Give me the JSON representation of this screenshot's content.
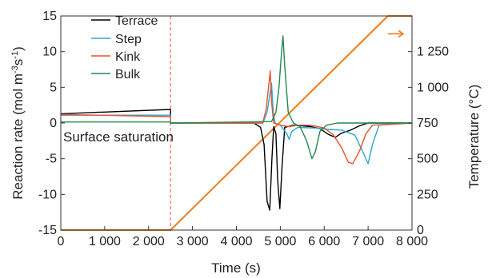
{
  "chart_data": {
    "type": "line",
    "xlabel": "Time (s)",
    "ylabel_left": "Reaction rate (mol m-3s-1)",
    "ylabel_left_parts": {
      "main": "Reaction rate (mol m",
      "sup1": "-3",
      "mid": "s",
      "sup2": "-1",
      "end": ")"
    },
    "ylabel_right": "Temperature (°C)",
    "xlim": [
      0,
      8000
    ],
    "ylim_left": [
      -15,
      15
    ],
    "ylim_right": [
      0,
      1500
    ],
    "x_ticks": [
      0,
      1000,
      2000,
      3000,
      4000,
      5000,
      6000,
      7000,
      8000
    ],
    "x_tick_labels": [
      "0",
      "1 000",
      "2 000",
      "3 000",
      "4 000",
      "5 000",
      "6 000",
      "7 000",
      "8 000"
    ],
    "y_left_ticks": [
      15,
      10,
      5,
      0,
      -5,
      -10,
      -15
    ],
    "y_left_tick_labels": [
      "15",
      "10",
      "5",
      "0",
      "-5",
      "-10",
      "-15"
    ],
    "y_right_ticks": [
      0,
      250,
      500,
      750,
      1000,
      1250
    ],
    "y_right_tick_labels": [
      "0",
      "250",
      "500",
      "750",
      "1 000",
      "1 250"
    ],
    "grid": false,
    "legend_position": "top-left",
    "annotation": {
      "text": "Surface saturation",
      "x": 0,
      "y": -1.2
    },
    "saturation_end_x": 2500,
    "series": [
      {
        "name": "Terrace",
        "color": "#000000",
        "axis": "left",
        "points": [
          [
            0,
            1.3
          ],
          [
            2500,
            1.9
          ],
          [
            2500,
            0
          ],
          [
            4400,
            0
          ],
          [
            4550,
            -0.6
          ],
          [
            4630,
            -3
          ],
          [
            4700,
            -11
          ],
          [
            4760,
            -12.2
          ],
          [
            4810,
            -5
          ],
          [
            4850,
            -0.5
          ],
          [
            4900,
            -1.5
          ],
          [
            4940,
            -8
          ],
          [
            4990,
            -12
          ],
          [
            5040,
            -6
          ],
          [
            5100,
            -0.6
          ],
          [
            5300,
            -0.3
          ],
          [
            5700,
            -0.5
          ],
          [
            5900,
            -0.8
          ],
          [
            6100,
            -1.6
          ],
          [
            6250,
            -2.0
          ],
          [
            6400,
            -1.4
          ],
          [
            6600,
            -1.0
          ],
          [
            6800,
            -0.4
          ],
          [
            7000,
            0
          ],
          [
            8000,
            0
          ]
        ]
      },
      {
        "name": "Step",
        "color": "#29a6d1",
        "axis": "left",
        "points": [
          [
            0,
            1.1
          ],
          [
            2500,
            1.1
          ],
          [
            2500,
            0
          ],
          [
            4600,
            0
          ],
          [
            4700,
            1.5
          ],
          [
            4760,
            4
          ],
          [
            4800,
            5.6
          ],
          [
            4840,
            1.5
          ],
          [
            4880,
            0
          ],
          [
            5000,
            -0.3
          ],
          [
            5150,
            -1.5
          ],
          [
            5200,
            -2.3
          ],
          [
            5260,
            -1.2
          ],
          [
            5400,
            -0.6
          ],
          [
            5800,
            -0.7
          ],
          [
            6100,
            -0.9
          ],
          [
            6400,
            -1.0
          ],
          [
            6700,
            -1.7
          ],
          [
            6900,
            -4.3
          ],
          [
            7000,
            -5.7
          ],
          [
            7100,
            -3
          ],
          [
            7250,
            -0.3
          ],
          [
            8000,
            0
          ]
        ]
      },
      {
        "name": "Kink",
        "color": "#e8542a",
        "axis": "left",
        "points": [
          [
            0,
            1.2
          ],
          [
            2500,
            0.9
          ],
          [
            2500,
            0
          ],
          [
            4600,
            0
          ],
          [
            4680,
            2
          ],
          [
            4740,
            5.5
          ],
          [
            4770,
            7.3
          ],
          [
            4800,
            3
          ],
          [
            4850,
            0
          ],
          [
            5000,
            -0.3
          ],
          [
            5200,
            -0.5
          ],
          [
            5400,
            -0.3
          ],
          [
            5700,
            -0.3
          ],
          [
            6000,
            -0.7
          ],
          [
            6200,
            -1.6
          ],
          [
            6400,
            -3.5
          ],
          [
            6550,
            -5.5
          ],
          [
            6650,
            -5.7
          ],
          [
            6800,
            -4
          ],
          [
            6950,
            -1.5
          ],
          [
            7100,
            -0.3
          ],
          [
            8000,
            0
          ]
        ]
      },
      {
        "name": "Bulk",
        "color": "#1d8a4e",
        "axis": "left",
        "points": [
          [
            0,
            0.15
          ],
          [
            2500,
            0.15
          ],
          [
            2500,
            0
          ],
          [
            4800,
            0.2
          ],
          [
            4900,
            1.5
          ],
          [
            4970,
            5
          ],
          [
            5030,
            10
          ],
          [
            5060,
            12.2
          ],
          [
            5100,
            8
          ],
          [
            5180,
            1.5
          ],
          [
            5300,
            0
          ],
          [
            5450,
            -0.5
          ],
          [
            5600,
            -2.5
          ],
          [
            5720,
            -5
          ],
          [
            5800,
            -4
          ],
          [
            5900,
            -1.2
          ],
          [
            6050,
            -0.3
          ],
          [
            6300,
            0
          ],
          [
            8000,
            0
          ]
        ]
      },
      {
        "name": "Temperature",
        "color": "#ef7d1d",
        "axis": "right",
        "points": [
          [
            0,
            0
          ],
          [
            2500,
            0
          ],
          [
            7450,
            1500
          ],
          [
            8000,
            1500
          ]
        ]
      }
    ],
    "temperature_arrow": {
      "x_from": 7450,
      "x_to": 7800,
      "y": 1375,
      "axis": "right"
    }
  }
}
